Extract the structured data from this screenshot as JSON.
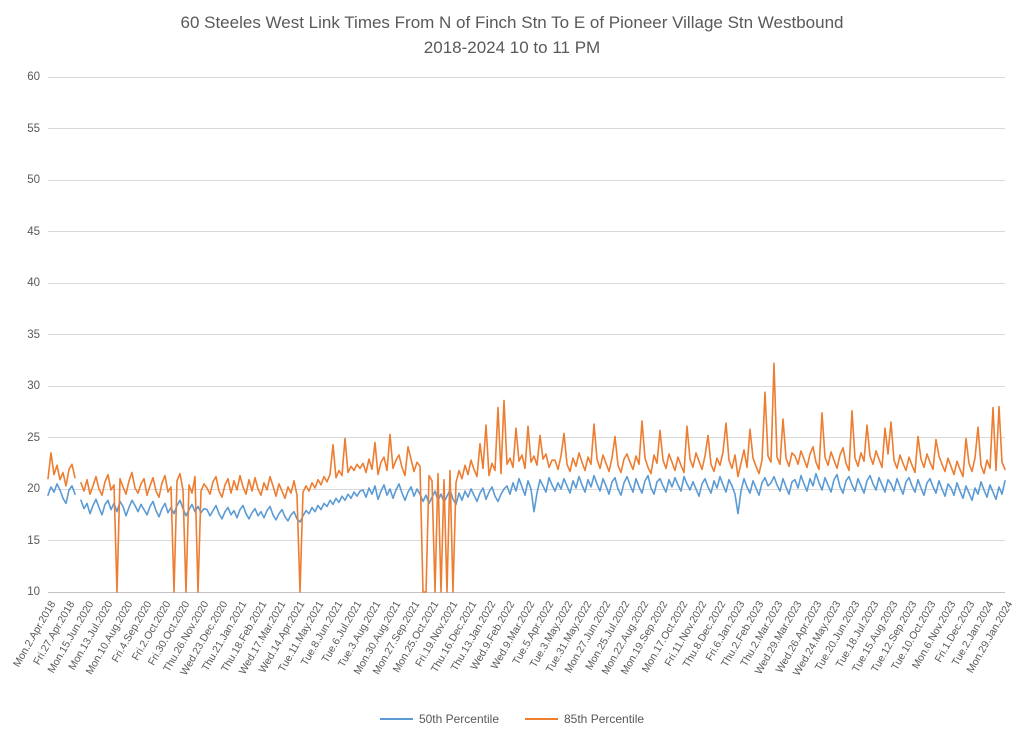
{
  "chart_data": {
    "type": "line",
    "title": "60 Steeles West Link Times From N of Finch Stn To E of Pioneer Village Stn Westbound",
    "subtitle": "2018-2024 10 to 11 PM",
    "grid": true,
    "legend_position": "bottom",
    "y_axis": {
      "min": 10,
      "max": 60,
      "tick_interval": 5,
      "ticks": [
        60,
        55,
        50,
        45,
        40,
        35,
        30,
        25,
        20,
        15,
        10
      ]
    },
    "x_axis": {
      "labels": [
        "Mon.2.Apr.2018",
        "Fri.27.Apr.2018",
        "Mon.15.Jun.2020",
        "Mon.13.Jul.2020",
        "Mon.10.Aug.2020",
        "Fri.4.Sep.2020",
        "Fri.2.Oct.2020",
        "Fri.30.Oct.2020",
        "Thu.26.Nov.2020",
        "Wed.23.Dec.2020",
        "Thu.21.Jan.2021",
        "Thu.18.Feb.2021",
        "Wed.17.Mar.2021",
        "Wed.14.Apr.2021",
        "Tue.11.May.2021",
        "Tue.8.Jun.2021",
        "Tue.6.Jul.2021",
        "Tue.3.Aug.2021",
        "Mon.30.Aug.2021",
        "Mon.27.Sep.2021",
        "Mon.25.Oct.2021",
        "Fri.19.Nov.2021",
        "Thu.16.Dec.2021",
        "Thu.13.Jan.2022",
        "Wed.9.Feb.2022",
        "Wed.9.Mar.2022",
        "Tue.5.Apr.2022",
        "Tue.3.May.2022",
        "Tue.31.May.2022",
        "Mon.27.Jun.2022",
        "Mon.25.Jul.2022",
        "Mon.22.Aug.2022",
        "Mon.19.Sep.2022",
        "Mon.17.Oct.2022",
        "Fri.11.Nov.2022",
        "Thu.8.Dec.2022",
        "Fri.6.Jan.2023",
        "Thu.2.Feb.2023",
        "Thu.2.Mar.2023",
        "Wed.29.Mar.2023",
        "Wed.26.Apr.2023",
        "Wed.24.May.2023",
        "Tue.20.Jun.2023",
        "Tue.18.Jul.2023",
        "Tue.15.Aug.2023",
        "Tue.12.Sep.2023",
        "Tue.10.Oct.2023",
        "Mon.6.Nov.2023",
        "Fri.1.Dec.2023",
        "Tue.2.Jan.2024",
        "Mon.29.Jan.2024"
      ]
    },
    "series": [
      {
        "name": "50th Percentile",
        "color": "#5b9bd5",
        "values": [
          19.4,
          20.2,
          19.7,
          20.5,
          19.9,
          19.1,
          18.6,
          19.9,
          20.3,
          19.5,
          null,
          18.9,
          18.1,
          18.6,
          17.6,
          18.4,
          19.0,
          18.2,
          17.5,
          18.5,
          18.9,
          18.0,
          18.6,
          17.8,
          18.8,
          18.3,
          17.4,
          18.2,
          18.9,
          18.4,
          17.8,
          18.5,
          18.0,
          17.5,
          18.3,
          18.8,
          17.9,
          17.3,
          18.1,
          18.6,
          17.7,
          18.2,
          17.6,
          18.4,
          18.9,
          18.1,
          17.4,
          18.0,
          18.5,
          17.8,
          18.3,
          17.7,
          18.1,
          18.0,
          17.4,
          17.9,
          18.4,
          17.6,
          17.1,
          17.8,
          18.2,
          17.5,
          17.9,
          17.2,
          18.0,
          18.4,
          17.6,
          17.1,
          17.7,
          18.1,
          17.4,
          17.8,
          17.2,
          17.9,
          18.3,
          17.5,
          17.0,
          17.6,
          18.0,
          17.3,
          16.9,
          17.5,
          17.8,
          17.1,
          16.8,
          17.4,
          17.9,
          17.6,
          18.2,
          17.8,
          18.4,
          18.0,
          18.6,
          18.3,
          18.9,
          18.5,
          19.1,
          18.7,
          19.3,
          18.9,
          19.5,
          19.1,
          19.7,
          19.3,
          19.8,
          19.9,
          19.2,
          20.1,
          19.5,
          20.3,
          19.0,
          19.8,
          20.4,
          19.4,
          20.0,
          19.1,
          19.9,
          20.5,
          19.6,
          18.9,
          19.7,
          20.2,
          19.3,
          20.0,
          19.5,
          18.8,
          19.4,
          18.6,
          19.2,
          19.8,
          18.9,
          19.5,
          18.7,
          19.3,
          19.9,
          19.0,
          18.5,
          19.6,
          18.9,
          19.8,
          19.2,
          20.0,
          19.4,
          18.8,
          19.6,
          20.1,
          19.0,
          19.7,
          20.2,
          19.3,
          18.8,
          19.5,
          20.0,
          20.3,
          19.5,
          20.6,
          19.8,
          21.0,
          20.2,
          19.4,
          20.8,
          20.0,
          17.8,
          19.6,
          20.9,
          20.3,
          19.7,
          21.1,
          20.4,
          19.8,
          20.6,
          20.0,
          21.0,
          20.3,
          19.6,
          20.8,
          20.1,
          21.2,
          20.4,
          19.7,
          20.9,
          20.2,
          21.3,
          20.5,
          19.8,
          21.0,
          20.3,
          19.5,
          20.7,
          21.1,
          20.0,
          19.4,
          20.6,
          21.2,
          20.4,
          19.7,
          21.0,
          20.2,
          19.6,
          20.8,
          21.3,
          20.1,
          19.5,
          20.7,
          21.0,
          20.3,
          19.7,
          20.9,
          20.2,
          21.1,
          20.4,
          19.8,
          21.2,
          20.5,
          19.9,
          20.7,
          20.0,
          19.3,
          20.5,
          21.0,
          20.2,
          19.6,
          20.8,
          20.1,
          21.2,
          20.4,
          19.7,
          20.9,
          20.3,
          19.5,
          17.6,
          19.8,
          21.0,
          20.2,
          19.6,
          20.8,
          20.1,
          19.4,
          20.6,
          21.1,
          20.3,
          20.6,
          21.2,
          20.4,
          19.8,
          21.0,
          20.2,
          19.5,
          20.7,
          20.9,
          20.1,
          21.3,
          20.5,
          19.8,
          21.0,
          20.3,
          21.5,
          20.6,
          19.9,
          21.1,
          20.4,
          19.7,
          20.9,
          21.4,
          20.2,
          19.6,
          20.8,
          21.2,
          20.4,
          19.8,
          21.0,
          20.3,
          19.6,
          20.8,
          21.3,
          20.5,
          19.9,
          21.1,
          20.4,
          19.7,
          20.9,
          20.5,
          19.8,
          21.0,
          20.2,
          19.5,
          20.7,
          21.1,
          20.3,
          19.7,
          20.9,
          20.1,
          19.4,
          20.6,
          21.0,
          20.2,
          19.6,
          20.8,
          20.0,
          19.3,
          20.5,
          20.1,
          19.4,
          20.6,
          19.8,
          19.1,
          20.3,
          19.6,
          18.9,
          20.1,
          19.5,
          20.7,
          19.9,
          19.2,
          20.4,
          19.7,
          19.0,
          20.2,
          19.5,
          20.8
        ]
      },
      {
        "name": "85th Percentile",
        "color": "#ed7d31",
        "values": [
          21.0,
          23.5,
          21.4,
          22.3,
          20.9,
          21.6,
          20.3,
          21.9,
          22.4,
          21.1,
          null,
          20.6,
          19.8,
          20.9,
          19.5,
          20.3,
          21.2,
          20.0,
          19.4,
          20.7,
          21.4,
          19.9,
          20.4,
          10.0,
          21.0,
          20.2,
          19.5,
          20.8,
          21.6,
          20.1,
          19.6,
          20.5,
          21.0,
          19.4,
          20.3,
          21.1,
          19.8,
          19.2,
          20.6,
          21.3,
          19.7,
          20.2,
          10.0,
          20.8,
          21.5,
          19.9,
          10.0,
          20.4,
          19.6,
          21.2,
          10.0,
          19.8,
          20.5,
          20.1,
          19.5,
          20.7,
          21.2,
          19.8,
          19.2,
          20.4,
          21.0,
          19.6,
          20.8,
          19.9,
          21.3,
          20.2,
          19.5,
          20.9,
          19.8,
          21.1,
          20.0,
          19.4,
          20.6,
          19.9,
          21.2,
          20.3,
          19.3,
          20.5,
          19.8,
          19.1,
          20.2,
          19.6,
          20.8,
          19.4,
          10.0,
          19.7,
          20.3,
          19.8,
          20.6,
          20.1,
          20.9,
          20.4,
          21.2,
          20.7,
          21.4,
          24.3,
          21.1,
          21.8,
          21.3,
          24.9,
          21.6,
          22.2,
          21.8,
          22.4,
          22.0,
          22.5,
          21.6,
          22.9,
          21.9,
          24.5,
          21.4,
          22.6,
          23.1,
          21.8,
          25.3,
          22.0,
          22.8,
          23.3,
          22.1,
          21.3,
          24.1,
          22.9,
          21.7,
          22.6,
          22.2,
          10.0,
          10.0,
          21.3,
          20.8,
          10.0,
          21.5,
          10.0,
          20.9,
          10.0,
          21.8,
          10.0,
          20.6,
          21.8,
          21.0,
          22.3,
          21.4,
          22.8,
          21.9,
          21.2,
          24.4,
          22.0,
          26.2,
          21.3,
          22.5,
          21.8,
          27.9,
          21.5,
          28.6,
          22.4,
          23.0,
          22.1,
          25.9,
          22.7,
          23.3,
          22.0,
          26.1,
          22.6,
          23.2,
          22.3,
          25.2,
          22.9,
          23.4,
          22.1,
          22.8,
          22.8,
          21.9,
          23.2,
          25.4,
          22.4,
          21.7,
          23.0,
          22.2,
          23.5,
          22.6,
          21.8,
          23.1,
          22.4,
          26.3,
          22.9,
          22.0,
          23.3,
          22.5,
          21.7,
          23.0,
          25.1,
          22.3,
          21.6,
          22.9,
          23.4,
          22.6,
          21.9,
          23.2,
          22.4,
          26.6,
          23.0,
          22.1,
          21.5,
          23.3,
          22.5,
          25.7,
          22.8,
          22.0,
          23.4,
          22.6,
          21.8,
          23.1,
          22.3,
          21.6,
          26.1,
          22.9,
          22.1,
          23.5,
          22.7,
          21.9,
          23.2,
          25.2,
          22.4,
          21.7,
          23.0,
          22.3,
          23.6,
          26.4,
          22.8,
          22.0,
          23.3,
          21.2,
          22.5,
          23.8,
          22.1,
          25.8,
          23.0,
          22.2,
          21.5,
          22.8,
          29.4,
          23.2,
          22.6,
          32.2,
          23.1,
          22.4,
          26.8,
          23.0,
          22.2,
          23.5,
          23.2,
          22.4,
          23.7,
          22.9,
          22.1,
          23.4,
          24.1,
          22.6,
          21.9,
          27.4,
          23.1,
          22.3,
          23.6,
          22.8,
          22.0,
          23.3,
          24.0,
          22.5,
          21.8,
          27.6,
          23.0,
          22.2,
          23.5,
          22.7,
          26.2,
          23.2,
          22.4,
          23.7,
          22.9,
          22.1,
          25.9,
          23.4,
          26.5,
          22.8,
          22.0,
          23.3,
          22.5,
          21.8,
          23.1,
          22.3,
          21.6,
          25.1,
          22.9,
          22.1,
          23.4,
          22.6,
          21.9,
          24.8,
          23.2,
          22.4,
          21.7,
          23.0,
          22.2,
          21.4,
          22.7,
          21.9,
          21.2,
          24.9,
          22.5,
          21.7,
          23.0,
          26.0,
          22.3,
          21.5,
          22.8,
          22.0,
          27.9,
          21.8,
          28.0,
          22.6,
          21.9
        ]
      }
    ]
  }
}
